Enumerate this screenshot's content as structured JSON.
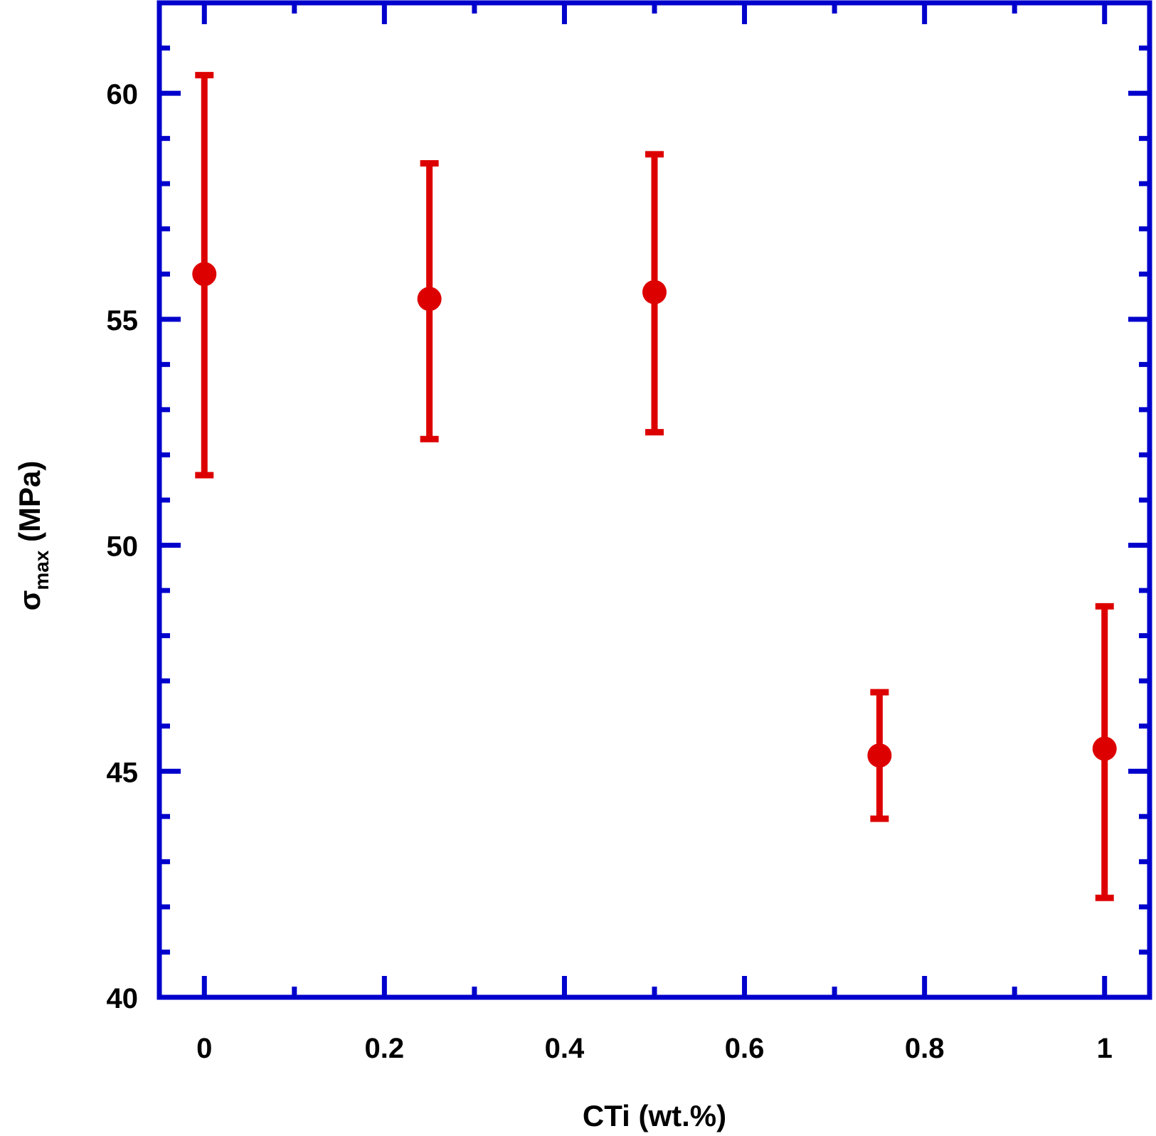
{
  "chart_data": {
    "type": "scatter",
    "title": "",
    "xlabel": "CTi (wt.%)",
    "ylabel": {
      "symbol": "σ",
      "subscript": "max",
      "unit": " (MPa)"
    },
    "xlim": [
      -0.05,
      1.05
    ],
    "ylim": [
      40,
      62
    ],
    "x_ticks": [
      0,
      0.2,
      0.4,
      0.6,
      0.8,
      1
    ],
    "x_tick_labels": [
      "0",
      "0.2",
      "0.4",
      "0.6",
      "0.8",
      "1"
    ],
    "y_ticks": [
      40,
      45,
      50,
      55,
      60
    ],
    "y_tick_labels": [
      "40",
      "45",
      "50",
      "55",
      "60"
    ],
    "grid": false,
    "legend": "none",
    "series": [
      {
        "x": [
          0,
          0.25,
          0.5,
          0.75,
          1.0
        ],
        "y": [
          56.0,
          55.45,
          55.6,
          45.35,
          45.5
        ],
        "y_err_low": [
          51.55,
          52.35,
          52.5,
          43.95,
          42.2
        ],
        "y_err_high": [
          60.4,
          58.45,
          58.65,
          46.75,
          48.65
        ],
        "color": "#dd0000"
      }
    ],
    "frame_color": "#0000cc",
    "text_color": "#000000"
  }
}
